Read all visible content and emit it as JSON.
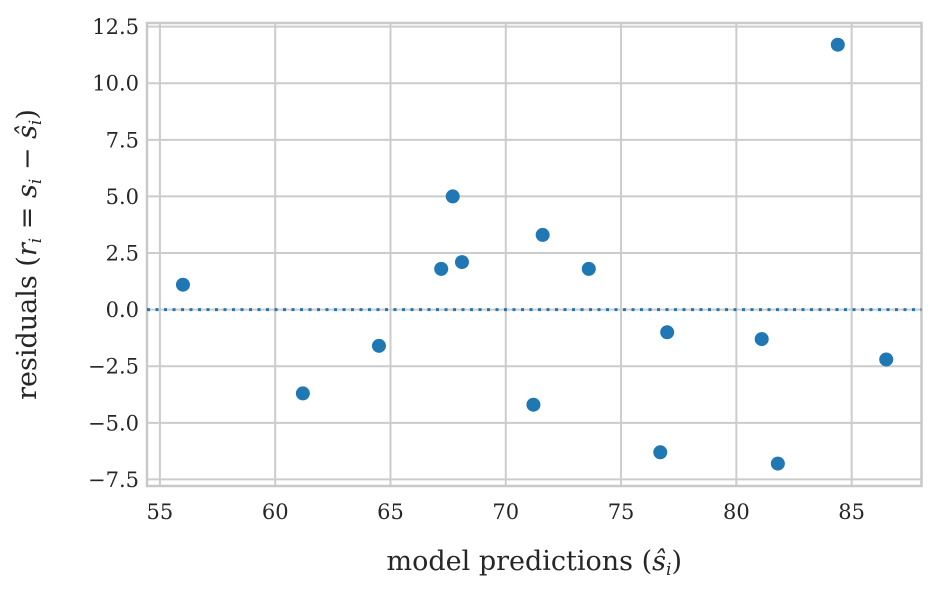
{
  "figure": {
    "background": "#ffffff",
    "point_color": "#1f77b4",
    "zero_line_color": "#1f77b4",
    "grid_color": "#cccccc",
    "spine_color": "#c9c9c9",
    "text_color": "#262626"
  },
  "chart_data": {
    "type": "scatter",
    "title": "",
    "xlabel": "model predictions (ŝᵢ)",
    "ylabel": "residuals (rᵢ = sᵢ − ŝᵢ)",
    "xlabel_segments": [
      {
        "t": "model predictions (",
        "s": "n"
      },
      {
        "t": "ŝ",
        "s": "i"
      },
      {
        "t": "i",
        "s": "sub"
      },
      {
        "t": ")",
        "s": "n"
      }
    ],
    "ylabel_segments": [
      {
        "t": "residuals (",
        "s": "n"
      },
      {
        "t": "r",
        "s": "i"
      },
      {
        "t": "i",
        "s": "sub"
      },
      {
        "t": " = ",
        "s": "n"
      },
      {
        "t": "s",
        "s": "i"
      },
      {
        "t": "i",
        "s": "sub"
      },
      {
        "t": " − ",
        "s": "n"
      },
      {
        "t": "ŝ",
        "s": "i"
      },
      {
        "t": "i",
        "s": "sub"
      },
      {
        "t": ")",
        "s": "n"
      }
    ],
    "points": [
      {
        "x": 56.0,
        "y": 1.1
      },
      {
        "x": 61.2,
        "y": -3.7
      },
      {
        "x": 64.5,
        "y": -1.6
      },
      {
        "x": 67.2,
        "y": 1.8
      },
      {
        "x": 67.7,
        "y": 5.0
      },
      {
        "x": 68.1,
        "y": 2.1
      },
      {
        "x": 71.2,
        "y": -4.2
      },
      {
        "x": 71.6,
        "y": 3.3
      },
      {
        "x": 73.6,
        "y": 1.8
      },
      {
        "x": 76.7,
        "y": -6.3
      },
      {
        "x": 77.0,
        "y": -1.0
      },
      {
        "x": 81.1,
        "y": -1.3
      },
      {
        "x": 81.8,
        "y": -6.8
      },
      {
        "x": 84.4,
        "y": 11.7
      },
      {
        "x": 86.5,
        "y": -2.2
      }
    ],
    "zero_line": {
      "y": 0.0,
      "style": "dotted"
    },
    "xticks": [
      55,
      60,
      65,
      70,
      75,
      80,
      85
    ],
    "xtick_labels": [
      "55",
      "60",
      "65",
      "70",
      "75",
      "80",
      "85"
    ],
    "yticks": [
      12.5,
      10.0,
      7.5,
      5.0,
      2.5,
      0.0,
      -2.5,
      -5.0,
      -7.5
    ],
    "ytick_labels": [
      "12.5",
      "10.0",
      "7.5",
      "5.0",
      "2.5",
      "0.0",
      "−2.5",
      "−5.0",
      "−7.5"
    ],
    "xlim": [
      54.44,
      88.03
    ],
    "ylim": [
      -7.79,
      12.66
    ],
    "grid": true,
    "legend": false
  }
}
